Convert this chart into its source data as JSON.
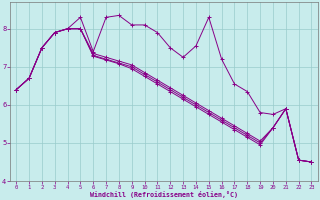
{
  "bg_color": "#c8ecec",
  "grid_color": "#99cccc",
  "line_color": "#880088",
  "xlabel": "Windchill (Refroidissement éolien,°C)",
  "xlim_min": -0.5,
  "xlim_max": 23.5,
  "ylim_min": 4.0,
  "ylim_max": 8.7,
  "yticks": [
    4,
    5,
    6,
    7,
    8
  ],
  "xticks": [
    0,
    1,
    2,
    3,
    4,
    5,
    6,
    7,
    8,
    9,
    10,
    11,
    12,
    13,
    14,
    15,
    16,
    17,
    18,
    19,
    20,
    21,
    22,
    23
  ],
  "series": [
    [
      6.4,
      6.7,
      7.5,
      7.9,
      8.0,
      8.3,
      7.4,
      8.3,
      8.35,
      8.1,
      8.1,
      7.9,
      7.5,
      7.25,
      7.55,
      8.3,
      7.2,
      6.55,
      6.35,
      5.8,
      5.75,
      5.9,
      4.55,
      4.5
    ],
    [
      6.4,
      6.7,
      7.5,
      7.9,
      8.0,
      8.0,
      7.35,
      7.25,
      7.15,
      7.05,
      6.85,
      6.65,
      6.45,
      6.25,
      6.05,
      5.85,
      5.65,
      5.45,
      5.25,
      5.05,
      5.4,
      5.9,
      4.55,
      4.5
    ],
    [
      6.4,
      6.7,
      7.5,
      7.9,
      8.0,
      8.0,
      7.3,
      7.2,
      7.1,
      7.0,
      6.8,
      6.6,
      6.4,
      6.2,
      6.0,
      5.8,
      5.6,
      5.4,
      5.2,
      5.0,
      5.4,
      5.9,
      4.55,
      4.5
    ],
    [
      6.4,
      6.7,
      7.5,
      7.9,
      8.0,
      8.0,
      7.28,
      7.18,
      7.08,
      6.95,
      6.75,
      6.55,
      6.35,
      6.15,
      5.95,
      5.75,
      5.55,
      5.35,
      5.15,
      4.95,
      5.4,
      5.9,
      4.55,
      4.5
    ]
  ]
}
